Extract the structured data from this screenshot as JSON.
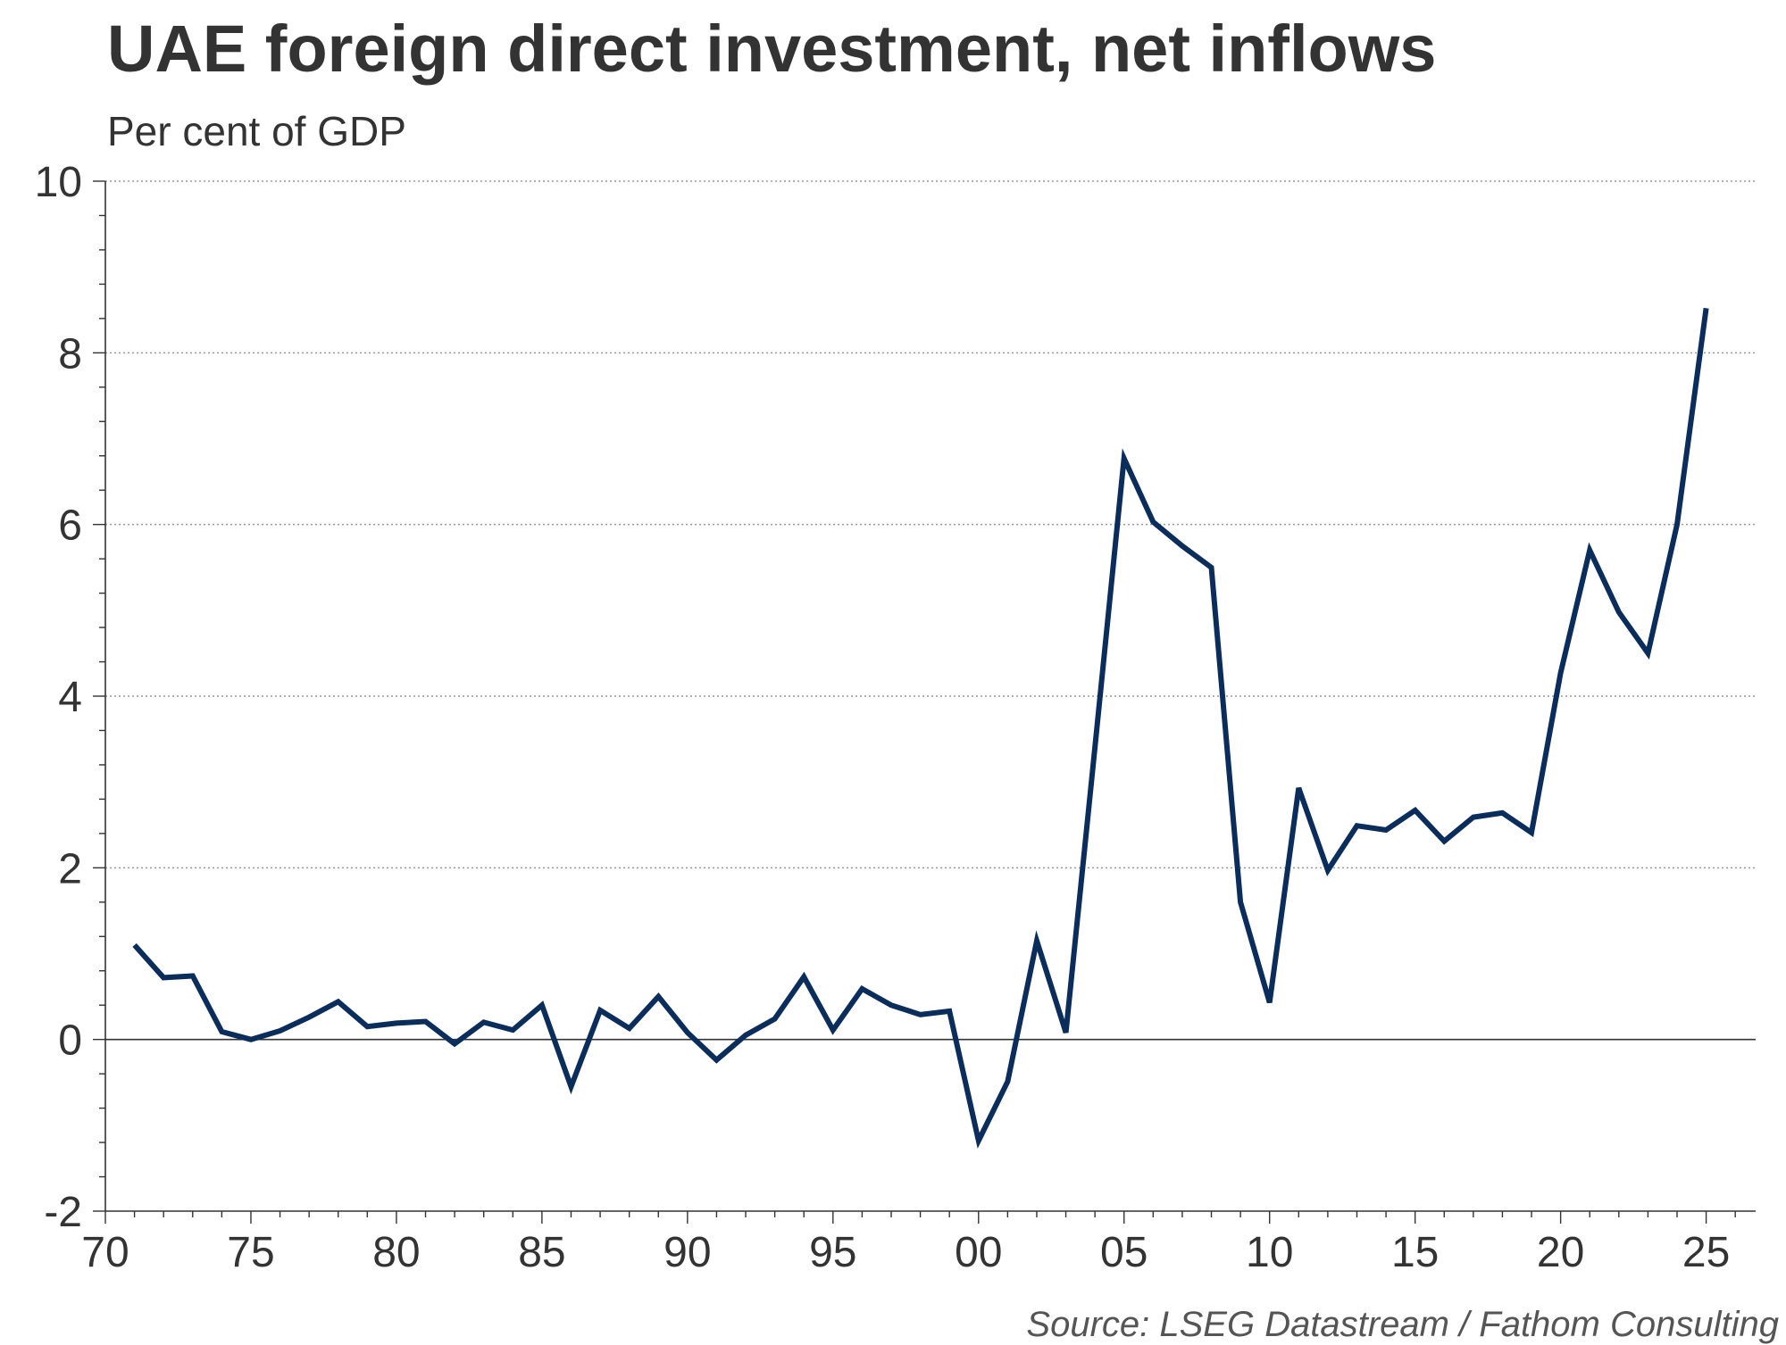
{
  "chart_data": {
    "type": "line",
    "title": "UAE foreign direct investment, net inflows",
    "subtitle": "Per cent of GDP",
    "source": "Source: LSEG Datastream / Fathom Consulting",
    "xlabel": "",
    "ylabel": "",
    "xlim": [
      1970,
      2026.7
    ],
    "ylim": [
      -2,
      10
    ],
    "x_ticks": [
      1970,
      1975,
      1980,
      1985,
      1990,
      1995,
      2000,
      2005,
      2010,
      2015,
      2020,
      2025
    ],
    "x_tick_labels": [
      "70",
      "75",
      "80",
      "85",
      "90",
      "95",
      "00",
      "05",
      "10",
      "15",
      "20",
      "25"
    ],
    "y_ticks": [
      -2,
      0,
      2,
      4,
      6,
      8,
      10
    ],
    "y_tick_labels": [
      "-2",
      "0",
      "2",
      "4",
      "6",
      "8",
      "10"
    ],
    "grid": "horizontal dotted",
    "colors": {
      "line": "#0b2d5b",
      "grid": "#9a9a9a",
      "axis": "#333333"
    },
    "series": [
      {
        "x": [
          1971,
          1972,
          1973,
          1974,
          1975,
          1976,
          1977,
          1978,
          1979,
          1980,
          1981,
          1982,
          1983,
          1984,
          1985,
          1986,
          1987,
          1988,
          1989,
          1990,
          1991,
          1992,
          1993,
          1994,
          1995,
          1996,
          1997,
          1998,
          1999,
          2000,
          2001,
          2002,
          2003,
          2004,
          2005,
          2006,
          2007,
          2008,
          2009,
          2010,
          2011,
          2012,
          2013,
          2014,
          2015,
          2016,
          2017,
          2018,
          2019,
          2020,
          2021,
          2022,
          2023,
          2024,
          2025
        ],
        "values": [
          1.1,
          0.72,
          0.74,
          0.09,
          0.0,
          0.1,
          0.26,
          0.44,
          0.15,
          0.19,
          0.21,
          -0.05,
          0.2,
          0.11,
          0.4,
          -0.55,
          0.34,
          0.13,
          0.5,
          0.08,
          -0.24,
          0.05,
          0.24,
          0.73,
          0.11,
          0.59,
          0.4,
          0.29,
          0.33,
          -1.18,
          -0.49,
          1.15,
          0.08,
          3.4,
          6.77,
          6.03,
          5.75,
          5.5,
          1.6,
          0.43,
          2.93,
          1.97,
          2.49,
          2.44,
          2.67,
          2.31,
          2.59,
          2.64,
          2.41,
          4.27,
          5.7,
          4.98,
          4.5,
          6.0,
          8.52
        ]
      }
    ]
  }
}
